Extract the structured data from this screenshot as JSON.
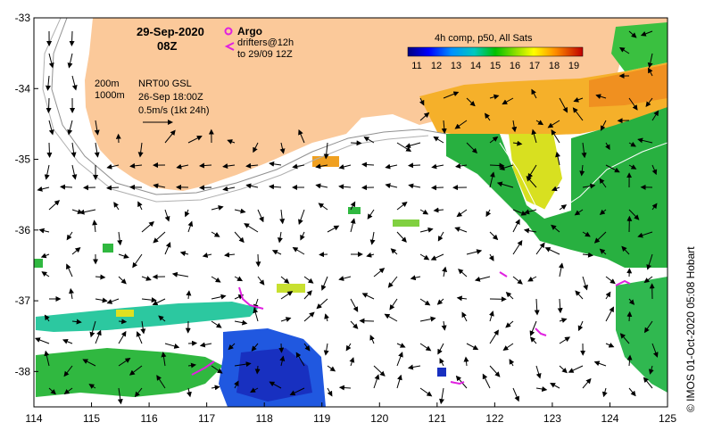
{
  "map": {
    "date": "29-Sep-2020",
    "hour": "08Z",
    "argo_label": "Argo",
    "drifters_label": "drifters@12h",
    "drifters_to": "to 29/09 12Z",
    "contour_200": "200m",
    "contour_1000": "1000m",
    "current_model": "NRT00 GSL",
    "current_time": "26-Sep 18:00Z",
    "scale_label": "0.5m/s (1kt 24h)",
    "credit": "© IMOS 01-Oct-2020 05:08 Hobart"
  },
  "colorbar": {
    "title": "4h comp, p50, All Sats",
    "ticks": [
      "11",
      "12",
      "13",
      "14",
      "15",
      "16",
      "17",
      "18",
      "19"
    ],
    "colors": [
      "#000080",
      "#0000ff",
      "#0080ff",
      "#00c8c8",
      "#00c000",
      "#80e000",
      "#ffff00",
      "#ffa000",
      "#ff4000",
      "#c00000"
    ]
  },
  "axes": {
    "x_ticks": [
      "114",
      "115",
      "116",
      "117",
      "118",
      "119",
      "120",
      "121",
      "122",
      "123",
      "124",
      "125"
    ],
    "y_ticks": [
      "-33",
      "-34",
      "-35",
      "-36",
      "-37",
      "-38"
    ],
    "lon_range": [
      114,
      125
    ],
    "lat_range": [
      -38.5,
      -33
    ]
  },
  "colors": {
    "land": "#fbc99a",
    "warm": "#f0a020",
    "green": "#20b040",
    "cyan": "#30c8a0",
    "blue": "#2050e0",
    "magenta": "#e020e0"
  }
}
